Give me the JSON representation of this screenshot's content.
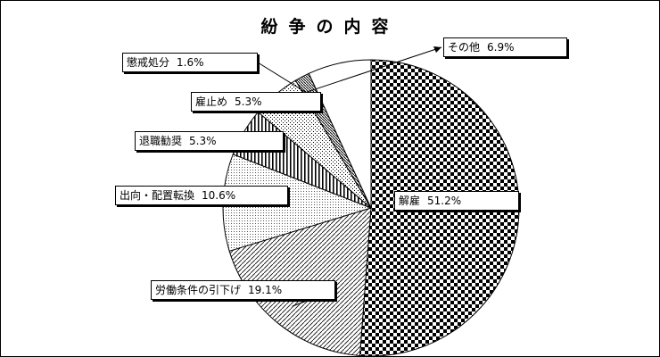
{
  "chart_data": {
    "type": "pie",
    "title": "紛争の内容",
    "start": "12 o'clock, clockwise",
    "slices": [
      {
        "label": "解雇",
        "value": 51.2,
        "value_label": "51.2%",
        "pattern": "checker"
      },
      {
        "label": "労働条件の引下げ",
        "value": 19.1,
        "value_label": "19.1%",
        "pattern": "diagonal"
      },
      {
        "label": "出向・配置転換",
        "value": 10.6,
        "value_label": "10.6%",
        "pattern": "fine-dots"
      },
      {
        "label": "退職勧奨",
        "value": 5.3,
        "value_label": "5.3%",
        "pattern": "vertical"
      },
      {
        "label": "雇止め",
        "value": 5.3,
        "value_label": "5.3%",
        "pattern": "dots"
      },
      {
        "label": "懲戒処分",
        "value": 1.6,
        "value_label": "1.6%",
        "pattern": "dense-diagonal"
      },
      {
        "label": "その他",
        "value": 6.9,
        "value_label": "6.9%",
        "pattern": "white"
      }
    ]
  }
}
